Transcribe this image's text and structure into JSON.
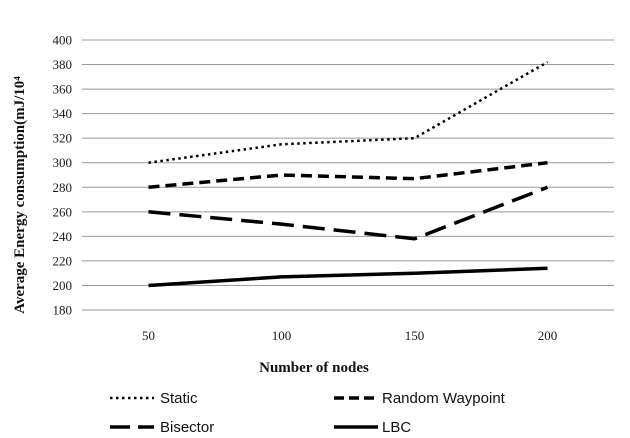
{
  "chart_data": {
    "type": "line",
    "categories": [
      "50",
      "100",
      "150",
      "200"
    ],
    "series": [
      {
        "name": "Static",
        "values": [
          300,
          315,
          320,
          382
        ],
        "style": "dotted"
      },
      {
        "name": "Random Waypoint",
        "values": [
          280,
          290,
          287,
          300
        ],
        "style": "dashed"
      },
      {
        "name": "Bisector",
        "values": [
          260,
          250,
          238,
          280
        ],
        "style": "longdash"
      },
      {
        "name": "LBC",
        "values": [
          200,
          207,
          210,
          214
        ],
        "style": "solid"
      }
    ],
    "xlabel": "Number of nodes",
    "ylabel": "Average Energy consumption(mJ/10⁴",
    "ylim": [
      180,
      400
    ],
    "yticks": [
      180,
      200,
      220,
      240,
      260,
      280,
      300,
      320,
      340,
      360,
      380,
      400
    ],
    "grid": "horizontal",
    "legend_position": "bottom",
    "line_color": "#000000"
  }
}
